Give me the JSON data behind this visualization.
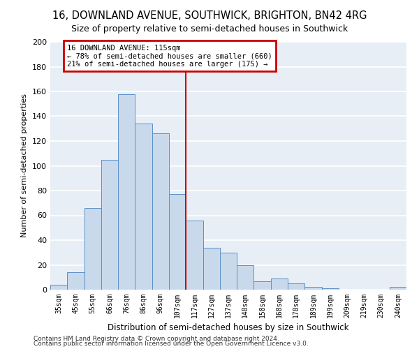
{
  "title": "16, DOWNLAND AVENUE, SOUTHWICK, BRIGHTON, BN42 4RG",
  "subtitle": "Size of property relative to semi-detached houses in Southwick",
  "xlabel": "Distribution of semi-detached houses by size in Southwick",
  "ylabel": "Number of semi-detached properties",
  "categories": [
    "35sqm",
    "45sqm",
    "55sqm",
    "66sqm",
    "76sqm",
    "86sqm",
    "96sqm",
    "107sqm",
    "117sqm",
    "127sqm",
    "137sqm",
    "148sqm",
    "158sqm",
    "168sqm",
    "178sqm",
    "189sqm",
    "199sqm",
    "209sqm",
    "219sqm",
    "230sqm",
    "240sqm"
  ],
  "values": [
    4,
    14,
    66,
    105,
    158,
    134,
    126,
    77,
    56,
    34,
    30,
    20,
    7,
    9,
    5,
    2,
    1,
    0,
    0,
    0,
    2
  ],
  "bar_color": "#c9d9ec",
  "bar_edgecolor": "#5b8fc7",
  "vline_index": 7.5,
  "annotation_title": "16 DOWNLAND AVENUE: 115sqm",
  "annotation_line1": "← 78% of semi-detached houses are smaller (660)",
  "annotation_line2": "21% of semi-detached houses are larger (175) →",
  "annotation_box_color": "#cc0000",
  "vline_color": "#cc0000",
  "background_color": "#e8eef5",
  "grid_color": "#ffffff",
  "ylim": [
    0,
    200
  ],
  "yticks": [
    0,
    20,
    40,
    60,
    80,
    100,
    120,
    140,
    160,
    180,
    200
  ],
  "footnote1": "Contains HM Land Registry data © Crown copyright and database right 2024.",
  "footnote2": "Contains public sector information licensed under the Open Government Licence v3.0."
}
